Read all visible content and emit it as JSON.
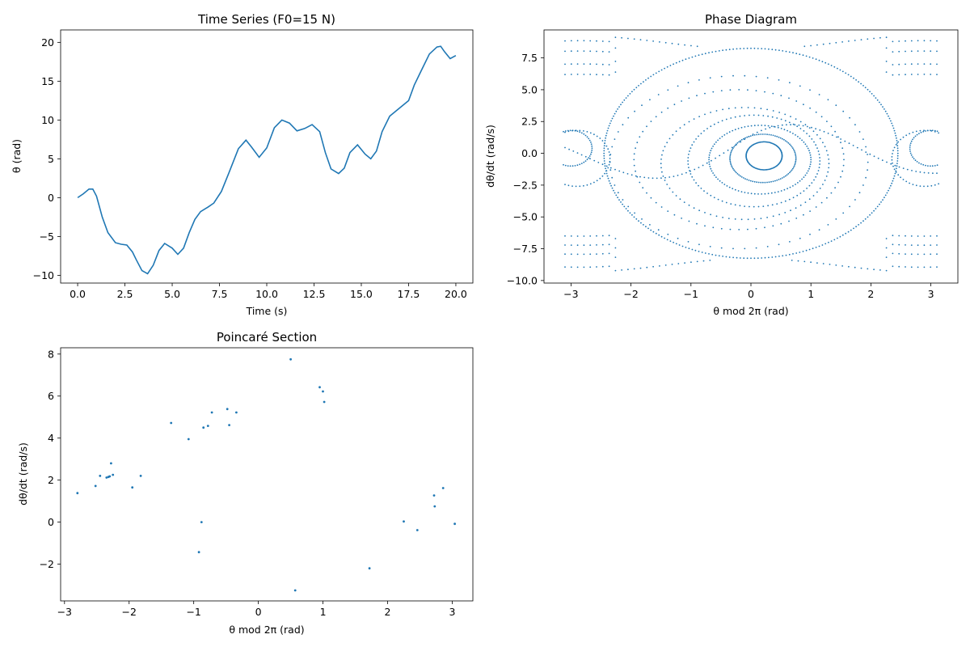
{
  "chart_data": [
    {
      "type": "line",
      "title": "Time Series (F0=15 N)",
      "xlabel": "Time (s)",
      "ylabel": "θ (rad)",
      "xlim": [
        -0.9,
        20.9
      ],
      "ylim": [
        -11,
        21.6
      ],
      "xticks": [
        0.0,
        2.5,
        5.0,
        7.5,
        10.0,
        12.5,
        15.0,
        17.5,
        20.0
      ],
      "yticks": [
        -10,
        -5,
        0,
        5,
        10,
        15,
        20
      ],
      "color": "#1f77b4",
      "series": [
        {
          "x": [
            0.0,
            0.3,
            0.6,
            0.8,
            1.0,
            1.3,
            1.6,
            2.0,
            2.3,
            2.6,
            2.9,
            3.1,
            3.4,
            3.7,
            4.0,
            4.3,
            4.6,
            5.0,
            5.3,
            5.6,
            5.9,
            6.2,
            6.5,
            6.9,
            7.2,
            7.6,
            8.0,
            8.5,
            8.9,
            9.2,
            9.6,
            10.0,
            10.4,
            10.8,
            11.2,
            11.6,
            12.0,
            12.4,
            12.8,
            13.1,
            13.4,
            13.8,
            14.1,
            14.4,
            14.8,
            15.2,
            15.5,
            15.8,
            16.1,
            16.5,
            17.0,
            17.5,
            17.8,
            18.2,
            18.6,
            19.0,
            19.2,
            19.4,
            19.7,
            20.0
          ],
          "y": [
            0.0,
            0.5,
            1.1,
            1.1,
            0.2,
            -2.5,
            -4.5,
            -5.8,
            -6.0,
            -6.1,
            -7.0,
            -8.0,
            -9.4,
            -9.8,
            -8.7,
            -6.8,
            -5.9,
            -6.5,
            -7.3,
            -6.5,
            -4.5,
            -2.8,
            -1.8,
            -1.2,
            -0.7,
            0.8,
            3.2,
            6.3,
            7.4,
            6.5,
            5.2,
            6.4,
            9.0,
            10.0,
            9.6,
            8.6,
            8.9,
            9.4,
            8.5,
            5.8,
            3.7,
            3.1,
            3.8,
            5.8,
            6.8,
            5.6,
            5.0,
            6.0,
            8.5,
            10.5,
            11.5,
            12.5,
            14.5,
            16.5,
            18.5,
            19.4,
            19.5,
            18.8,
            17.9,
            18.3
          ]
        }
      ]
    },
    {
      "type": "scatter",
      "title": "Phase Diagram",
      "xlabel": "θ mod 2π (rad)",
      "ylabel": "dθ/dt (rad/s)",
      "xlim": [
        -3.45,
        3.45
      ],
      "ylim": [
        -10.2,
        9.7
      ],
      "xticks": [
        -3,
        -2,
        -1,
        0,
        1,
        2,
        3
      ],
      "yticks": [
        -10.0,
        -7.5,
        -5.0,
        -2.5,
        0.0,
        2.5,
        5.0,
        7.5
      ],
      "color": "#1f77b4",
      "structure": {
        "main_cycle": {
          "center": [
            0.0,
            0.0
          ],
          "rx": 2.45,
          "ry": 8.25
        },
        "inner_loops": [
          {
            "rx": 2.15,
            "ry": 6.8,
            "cx": -0.2,
            "cy": -0.7
          },
          {
            "rx": 1.75,
            "ry": 5.5,
            "cx": -0.2,
            "cy": -0.5
          },
          {
            "rx": 1.4,
            "ry": 4.4,
            "cx": -0.1,
            "cy": -0.8
          },
          {
            "rx": 1.1,
            "ry": 3.6,
            "cx": 0.05,
            "cy": -0.6
          },
          {
            "rx": 0.85,
            "ry": 2.7,
            "cx": 0.15,
            "cy": -0.5
          },
          {
            "rx": 0.55,
            "ry": 1.9,
            "cx": 0.2,
            "cy": -0.4
          },
          {
            "rx": 0.3,
            "ry": 1.1,
            "cx": 0.22,
            "cy": -0.2
          }
        ],
        "outer_bands": [
          8.7,
          7.9,
          6.9,
          6.1,
          -6.4,
          -7.1,
          -7.8,
          -8.8
        ],
        "side_loops": [
          {
            "cx": -2.9,
            "cy": -0.4,
            "rx": 0.55,
            "ry": 2.2
          },
          {
            "cx": -3.0,
            "cy": 0.4,
            "rx": 0.35,
            "ry": 1.4
          },
          {
            "cx": 2.9,
            "cy": -0.4,
            "rx": 0.55,
            "ry": 2.2
          },
          {
            "cx": 3.0,
            "cy": 0.4,
            "rx": 0.35,
            "ry": 1.4
          }
        ]
      }
    },
    {
      "type": "scatter",
      "title": "Poincaré Section",
      "xlabel": "θ mod 2π (rad)",
      "ylabel": "dθ/dt (rad/s)",
      "xlim": [
        -3.06,
        3.32
      ],
      "ylim": [
        -3.75,
        8.3
      ],
      "xticks": [
        -3,
        -2,
        -1,
        0,
        1,
        2,
        3
      ],
      "yticks": [
        -2,
        0,
        2,
        4,
        6,
        8
      ],
      "color": "#1f77b4",
      "x": [
        -2.8,
        -2.52,
        -2.45,
        -2.35,
        -2.32,
        -2.3,
        -2.28,
        -2.25,
        -1.95,
        -1.82,
        -1.35,
        -1.08,
        -0.85,
        -0.78,
        -0.72,
        -0.48,
        -0.45,
        -0.34,
        -0.88,
        -0.92,
        0.5,
        0.57,
        0.95,
        1.0,
        1.02,
        1.72,
        2.25,
        2.46,
        2.72,
        2.73,
        2.86,
        3.04
      ],
      "y": [
        1.38,
        1.72,
        2.2,
        2.12,
        2.15,
        2.18,
        2.8,
        2.25,
        1.65,
        2.2,
        4.72,
        3.95,
        4.5,
        4.58,
        5.22,
        5.38,
        4.62,
        5.22,
        0.0,
        -1.43,
        7.75,
        -3.25,
        6.42,
        6.22,
        5.72,
        -2.2,
        0.03,
        -0.38,
        1.27,
        0.75,
        1.62,
        -0.08
      ]
    }
  ]
}
